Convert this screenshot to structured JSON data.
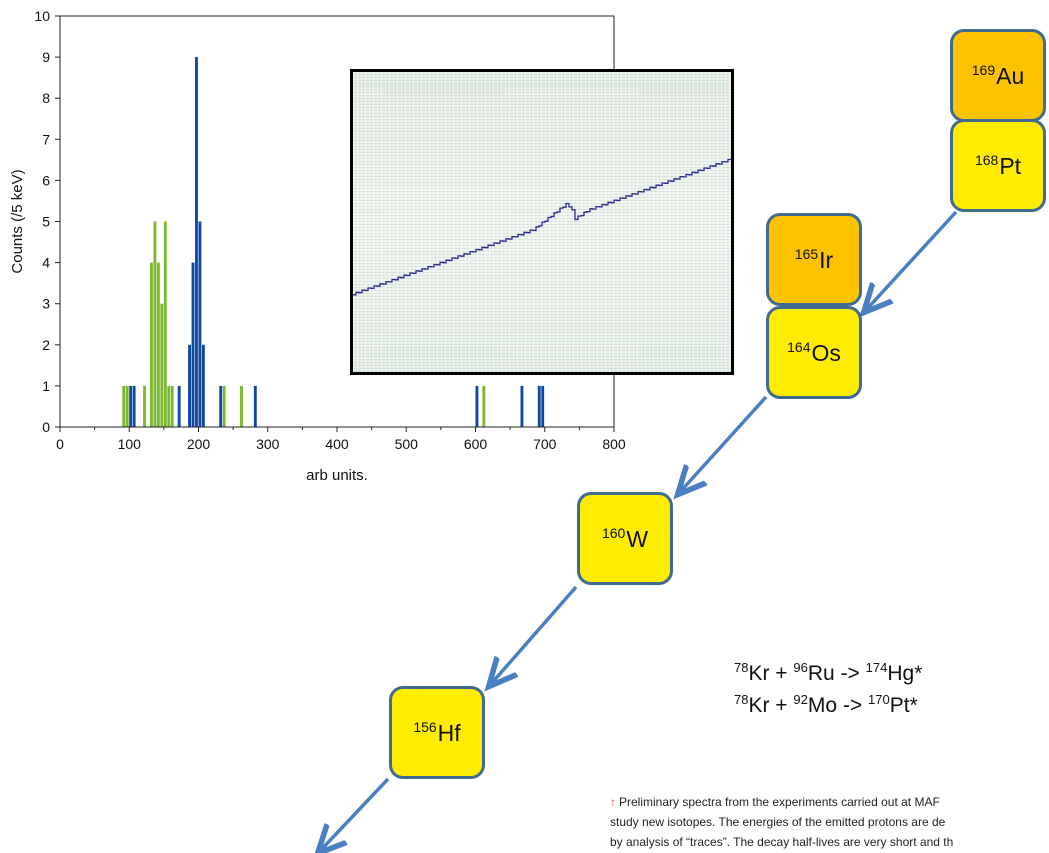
{
  "chart_data": {
    "type": "bar",
    "title": "",
    "xlabel": "arb units.",
    "ylabel": "Counts (/5 keV)",
    "xlim": [
      0,
      800
    ],
    "ylim": [
      0,
      10
    ],
    "x_ticks": [
      0,
      100,
      200,
      300,
      400,
      500,
      600,
      700,
      800
    ],
    "y_ticks": [
      0,
      1,
      2,
      3,
      4,
      5,
      6,
      7,
      8,
      9,
      10
    ],
    "bin_width": 5,
    "grid": false,
    "legend": "none",
    "series": [
      {
        "color": "#7cb82f",
        "points": [
          [
            90,
            1
          ],
          [
            95,
            1
          ],
          [
            120,
            1
          ],
          [
            130,
            4
          ],
          [
            135,
            5
          ],
          [
            140,
            4
          ],
          [
            145,
            3
          ],
          [
            150,
            5
          ],
          [
            155,
            1
          ],
          [
            160,
            1
          ],
          [
            235,
            1
          ],
          [
            260,
            1
          ],
          [
            610,
            1
          ]
        ]
      },
      {
        "color": "#0d47a1",
        "points": [
          [
            100,
            1
          ],
          [
            105,
            1
          ],
          [
            170,
            1
          ],
          [
            185,
            2
          ],
          [
            190,
            4
          ],
          [
            195,
            9
          ],
          [
            200,
            5
          ],
          [
            205,
            2
          ],
          [
            230,
            1
          ],
          [
            280,
            1
          ],
          [
            600,
            1
          ],
          [
            665,
            1
          ],
          [
            690,
            1
          ],
          [
            695,
            1
          ]
        ]
      }
    ]
  },
  "inset": {
    "trace_color": "#2a2a8c"
  },
  "decay_chain": {
    "nuclides": [
      {
        "mass": "169",
        "symbol": "Au"
      },
      {
        "mass": "168",
        "symbol": "Pt"
      },
      {
        "mass": "165",
        "symbol": "Ir"
      },
      {
        "mass": "164",
        "symbol": "Os"
      },
      {
        "mass": "160",
        "symbol": "W"
      },
      {
        "mass": "156",
        "symbol": "Hf"
      }
    ],
    "arrow_color": "#4a7fc1",
    "box_border_color": "#3f6b8f",
    "yellow": "#ffec00",
    "orange": "#fdc300"
  },
  "reactions": [
    {
      "projectile_mass": "78",
      "projectile": "Kr",
      "target_mass": "96",
      "target": "Ru",
      "product_mass": "174",
      "product": "Hg*"
    },
    {
      "projectile_mass": "78",
      "projectile": "Kr",
      "target_mass": "92",
      "target": "Mo",
      "product_mass": "170",
      "product": "Pt*"
    }
  ],
  "caption": {
    "arrow": "↑",
    "lines": [
      "Preliminary spectra from the experiments carried out at MAF",
      "study new isotopes. The energies of the emitted protons are de",
      "by analysis of “traces”. The decay half-lives are very short and th"
    ]
  }
}
